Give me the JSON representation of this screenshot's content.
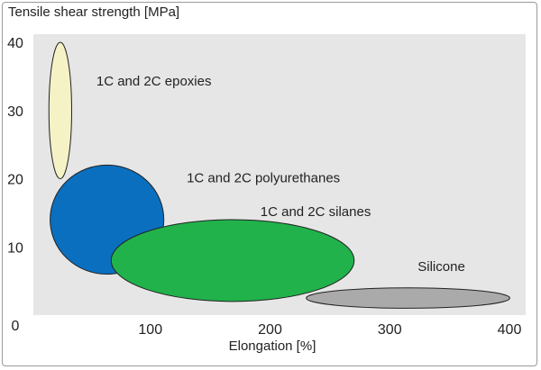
{
  "chart_data": {
    "type": "scatter",
    "title": "",
    "ylabel": "Tensile shear strength [MPa]",
    "xlabel": "Elongation [%]",
    "xlim": [
      0,
      400
    ],
    "ylim": [
      0,
      40
    ],
    "x_ticks": [
      "100",
      "200",
      "300",
      "400"
    ],
    "y_ticks": [
      "10",
      "20",
      "30",
      "40"
    ],
    "origin_label": "0",
    "grid": false,
    "plot_background": "#e6e6e6",
    "regions": [
      {
        "name": "1C and 2C epoxies",
        "color": "#f5f2c6",
        "x_range": [
          13,
          32
        ],
        "y_range": [
          20,
          40
        ]
      },
      {
        "name": "1C and 2C polyurethanes",
        "color": "#0a6fbf",
        "x_range": [
          14,
          109
        ],
        "y_range": [
          6,
          22
        ]
      },
      {
        "name": "1C and 2C silanes",
        "color": "#21b24b",
        "x_range": [
          65,
          268
        ],
        "y_range": [
          2,
          14
        ]
      },
      {
        "name": "Silicone",
        "color": "#aaaaaa",
        "x_range": [
          228,
          398
        ],
        "y_range": [
          1,
          4
        ]
      }
    ]
  }
}
